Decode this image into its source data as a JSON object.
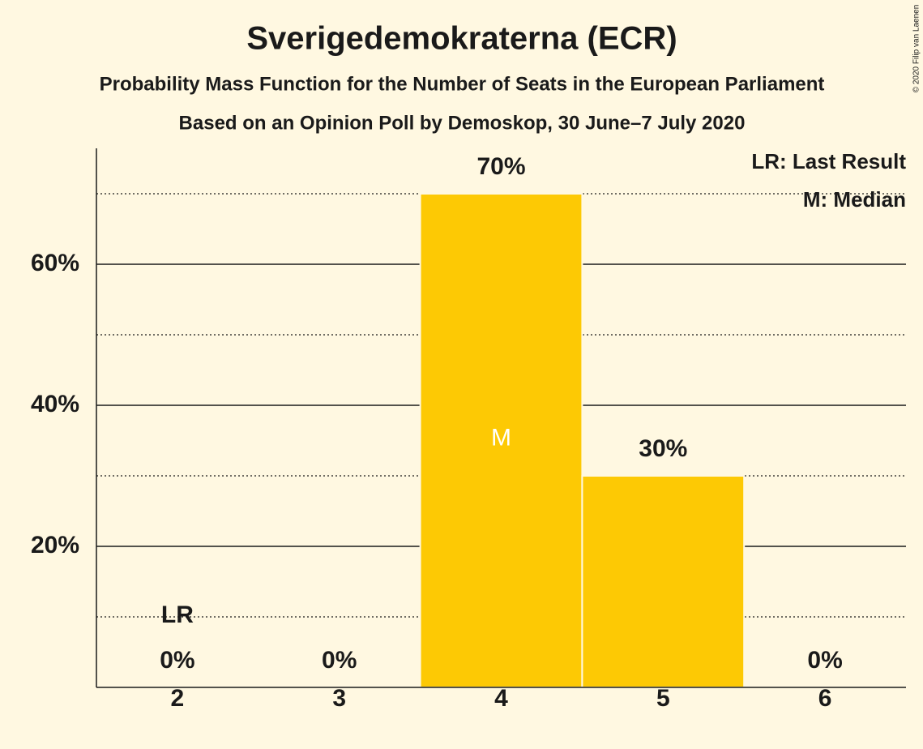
{
  "chart_data": {
    "type": "bar",
    "title": "Sverigedemokraterna (ECR)",
    "subtitle": "Probability Mass Function for the Number of Seats in the European Parliament",
    "source": "Based on an Opinion Poll by Demoskop, 30 June–7 July 2020",
    "categories": [
      "2",
      "3",
      "4",
      "5",
      "6"
    ],
    "values": [
      0,
      0,
      70,
      30,
      0
    ],
    "value_labels": [
      "0%",
      "0%",
      "70%",
      "30%",
      "0%"
    ],
    "color": "#fdc904",
    "ylim": [
      0,
      76
    ],
    "yticks": [
      {
        "value": 20,
        "label": "20%"
      },
      {
        "value": 40,
        "label": "40%"
      },
      {
        "value": 60,
        "label": "60%"
      }
    ],
    "minor_yticks": [
      10,
      30,
      50,
      70
    ],
    "grid": true,
    "annotations": [
      {
        "text": "LR",
        "category": "2"
      },
      {
        "text": "M",
        "category": "4"
      }
    ],
    "legend": [
      "LR: Last Result",
      "M: Median"
    ],
    "copyright": "© 2020 Filip van Laenen"
  }
}
